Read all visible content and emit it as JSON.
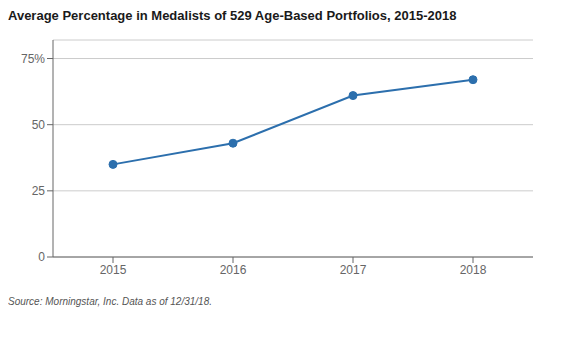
{
  "chart_data": {
    "type": "line",
    "title": "Average Percentage in Medalists of 529 Age-Based Portfolios, 2015-2018",
    "source": "Source: Morningstar, Inc. Data as of 12/31/18.",
    "x": [
      2015,
      2016,
      2017,
      2018
    ],
    "values": [
      35,
      43,
      61,
      67
    ],
    "color": "#2c6fad",
    "marker": "circle",
    "xlim": [
      2014.5,
      2018.5
    ],
    "xticks": [
      2015,
      2016,
      2017,
      2018
    ],
    "ylim": [
      0,
      82
    ],
    "yticks": [
      0,
      25,
      50,
      {
        "value": 75,
        "label": "75%"
      }
    ],
    "grid": true
  }
}
